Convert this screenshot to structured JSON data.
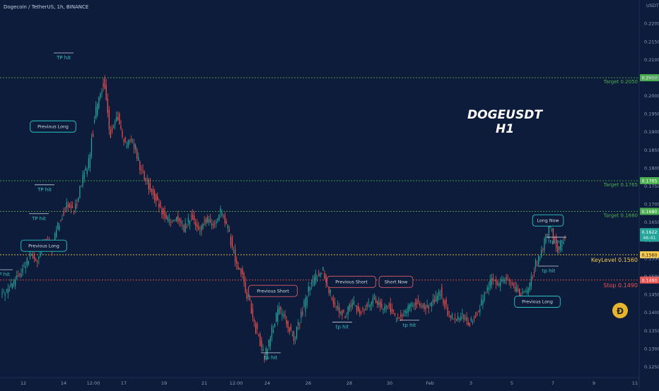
{
  "header": {
    "symbol_line": "Dogecoin / TetherUS, 1h, BINANCE",
    "quote_label": "USDT"
  },
  "watermark": {
    "line1": "DOGEUSDT",
    "line2": "H1"
  },
  "colors": {
    "background": "#0c1c3a",
    "candle_up": "#26a69a",
    "candle_down": "#ef5350",
    "target": "#4caf50",
    "keylevel": "#f7c948",
    "stop": "#ef5350",
    "price_tag": "#26a69a",
    "annotation": "#2ec4c4",
    "annotation_red": "#e05a6a"
  },
  "chart_data": {
    "type": "candlestick",
    "symbol": "Dogecoin / TetherUS",
    "timeframe": "1h",
    "exchange": "BINANCE",
    "ylim": [
      0.122,
      0.223
    ],
    "y_ticks": [
      "0.2200",
      "0.2150",
      "0.2100",
      "0.2050",
      "0.2000",
      "0.1950",
      "0.1900",
      "0.1850",
      "0.1800",
      "0.1750",
      "0.1700",
      "0.1650",
      "0.1600",
      "0.1550",
      "0.1500",
      "0.1450",
      "0.1400",
      "0.1350",
      "0.1300",
      "0.1250"
    ],
    "x_ticks": [
      "12",
      "14",
      "12:00",
      "17",
      "19",
      "21",
      "12:00",
      "24",
      "26",
      "28",
      "30",
      "Feb",
      "3",
      "5",
      "7",
      "9",
      "11"
    ],
    "price_path": [
      [
        0.145,
        0.146
      ],
      [
        0.146,
        0.149
      ],
      [
        0.149,
        0.152
      ],
      [
        0.152,
        0.156
      ],
      [
        0.156,
        0.154
      ],
      [
        0.154,
        0.16
      ],
      [
        0.16,
        0.158
      ],
      [
        0.158,
        0.165
      ],
      [
        0.165,
        0.17
      ],
      [
        0.17,
        0.168
      ],
      [
        0.168,
        0.176
      ],
      [
        0.176,
        0.182
      ],
      [
        0.182,
        0.196
      ],
      [
        0.196,
        0.204
      ],
      [
        0.204,
        0.19
      ],
      [
        0.19,
        0.194
      ],
      [
        0.194,
        0.186
      ],
      [
        0.186,
        0.188
      ],
      [
        0.188,
        0.18
      ],
      [
        0.18,
        0.176
      ],
      [
        0.176,
        0.172
      ],
      [
        0.172,
        0.168
      ],
      [
        0.168,
        0.165
      ],
      [
        0.165,
        0.166
      ],
      [
        0.166,
        0.163
      ],
      [
        0.163,
        0.167
      ],
      [
        0.167,
        0.162
      ],
      [
        0.162,
        0.166
      ],
      [
        0.166,
        0.164
      ],
      [
        0.164,
        0.168
      ],
      [
        0.168,
        0.163
      ],
      [
        0.163,
        0.155
      ],
      [
        0.155,
        0.15
      ],
      [
        0.15,
        0.142
      ],
      [
        0.142,
        0.134
      ],
      [
        0.134,
        0.128
      ],
      [
        0.128,
        0.135
      ],
      [
        0.135,
        0.141
      ],
      [
        0.141,
        0.137
      ],
      [
        0.137,
        0.133
      ],
      [
        0.133,
        0.139
      ],
      [
        0.139,
        0.146
      ],
      [
        0.146,
        0.15
      ],
      [
        0.15,
        0.152
      ],
      [
        0.152,
        0.145
      ],
      [
        0.145,
        0.141
      ],
      [
        0.141,
        0.139
      ],
      [
        0.139,
        0.143
      ],
      [
        0.143,
        0.14
      ],
      [
        0.14,
        0.142
      ],
      [
        0.142,
        0.144
      ],
      [
        0.144,
        0.141
      ],
      [
        0.141,
        0.142
      ],
      [
        0.142,
        0.138
      ],
      [
        0.138,
        0.14
      ],
      [
        0.14,
        0.142
      ],
      [
        0.142,
        0.143
      ],
      [
        0.143,
        0.141
      ],
      [
        0.141,
        0.143
      ],
      [
        0.143,
        0.146
      ],
      [
        0.146,
        0.14
      ],
      [
        0.14,
        0.138
      ],
      [
        0.138,
        0.139
      ],
      [
        0.139,
        0.137
      ],
      [
        0.137,
        0.14
      ],
      [
        0.14,
        0.145
      ],
      [
        0.145,
        0.149
      ],
      [
        0.149,
        0.148
      ],
      [
        0.148,
        0.15
      ],
      [
        0.15,
        0.147
      ],
      [
        0.147,
        0.145
      ],
      [
        0.145,
        0.146
      ],
      [
        0.146,
        0.153
      ],
      [
        0.153,
        0.158
      ],
      [
        0.158,
        0.164
      ],
      [
        0.164,
        0.157
      ],
      [
        0.157,
        0.161
      ]
    ],
    "levels": [
      {
        "label": "Target 0.2050",
        "value": 0.205,
        "tag": "0.2050",
        "kind": "target"
      },
      {
        "label": "Target 0.1765",
        "value": 0.1765,
        "tag": "0.1765",
        "kind": "target"
      },
      {
        "label": "Target 0.1680",
        "value": 0.168,
        "tag": "0.1680",
        "kind": "target"
      },
      {
        "label": "KeyLevel 0.1560",
        "value": 0.156,
        "tag": "0.1560",
        "kind": "keylevel"
      },
      {
        "label": "Stop 0.1490",
        "value": 0.149,
        "tag": "0.1490",
        "kind": "stop"
      }
    ],
    "current_price": {
      "value": 0.1622,
      "tag": "0.1622",
      "countdown": "46:41"
    },
    "annotations": [
      {
        "text": "TP hit",
        "price": 0.2105,
        "style": "tp"
      },
      {
        "text": "Previous Long",
        "price": 0.1915,
        "style": "box"
      },
      {
        "text": "TP hit",
        "price": 0.174,
        "style": "tp"
      },
      {
        "text": "TP hit",
        "price": 0.166,
        "style": "tp"
      },
      {
        "text": "Previous Long",
        "price": 0.1585,
        "style": "box"
      },
      {
        "text": "TP hit",
        "price": 0.1505,
        "style": "tp"
      },
      {
        "text": "Previous Short",
        "price": 0.146,
        "style": "box_red"
      },
      {
        "text": "tp hit",
        "price": 0.1275,
        "style": "tp"
      },
      {
        "text": "Previous Short",
        "price": 0.1485,
        "style": "box_red"
      },
      {
        "text": "tp hit",
        "price": 0.136,
        "style": "tp"
      },
      {
        "text": "Short Now",
        "price": 0.1485,
        "style": "box_red"
      },
      {
        "text": "tp hit",
        "price": 0.1365,
        "style": "tp"
      },
      {
        "text": "Previous Long",
        "price": 0.143,
        "style": "box"
      },
      {
        "text": "tp hit",
        "price": 0.1515,
        "style": "tp"
      },
      {
        "text": "tp hit",
        "price": 0.1595,
        "style": "tp"
      },
      {
        "text": "Long Now",
        "price": 0.1655,
        "style": "box"
      }
    ]
  }
}
